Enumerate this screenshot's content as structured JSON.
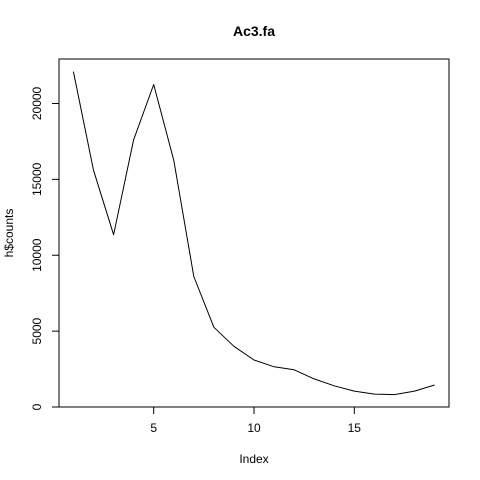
{
  "chart_data": {
    "type": "line",
    "title": "Ac3.fa",
    "xlabel": "Index",
    "ylabel": "h$counts",
    "xlim": [
      0.28,
      19.72
    ],
    "ylim": [
      0,
      22930
    ],
    "x_ticks": [
      5,
      10,
      15
    ],
    "y_ticks": [
      0,
      5000,
      10000,
      15000,
      20000
    ],
    "grid": false,
    "series": [
      {
        "x": [
          1,
          2,
          3,
          4,
          5,
          6,
          7,
          8,
          9,
          10,
          11,
          12,
          13,
          14,
          15,
          16,
          17,
          18,
          19
        ],
        "values": [
          22100,
          15600,
          11350,
          17600,
          21250,
          16250,
          8600,
          5250,
          4000,
          3100,
          2650,
          2450,
          1850,
          1400,
          1050,
          850,
          820,
          1050,
          1450
        ],
        "color": "#000000"
      }
    ]
  }
}
